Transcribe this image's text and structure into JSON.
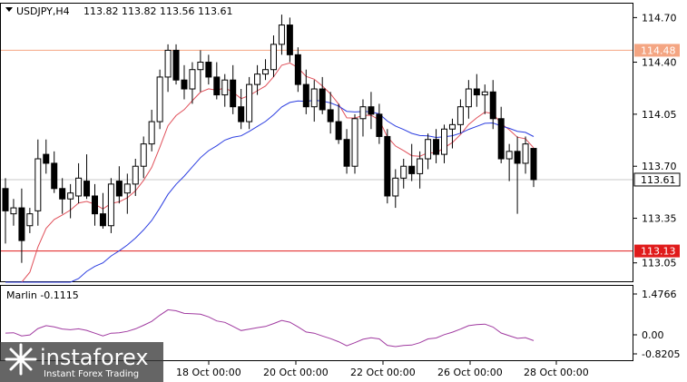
{
  "header": {
    "symbol_timeframe": "USDJPY,H4",
    "ohlc": "113.82 113.82 113.56 113.61"
  },
  "indicator": {
    "label": "Marlin -0.1115",
    "axis_labels": [
      "1.4766",
      "0.00",
      "-0.8205"
    ]
  },
  "price_axis": {
    "labels": [
      "114.70",
      "114.40",
      "114.05",
      "113.70",
      "113.35",
      "113.05"
    ]
  },
  "levels": [
    {
      "label": "114.48",
      "value": 114.48,
      "color": "#f4a582"
    },
    {
      "label": "113.13",
      "value": 113.13,
      "color": "#e01b1b"
    }
  ],
  "current_price": {
    "label": "113.61",
    "value": 113.61
  },
  "time_axis": {
    "labels": [
      "18 Oct 00:00",
      "20 Oct 00:00",
      "22 Oct 00:00",
      "26 Oct 00:00",
      "28 Oct 00:00"
    ]
  },
  "watermark": {
    "brand": "instaforex",
    "tagline": "Instant Forex Trading"
  },
  "colors": {
    "bull_body": "#ffffff",
    "bear_body": "#000000",
    "ma_fast": "#e0505a",
    "ma_slow": "#2b3de0",
    "oscillator": "#a03aa0"
  },
  "chart_data": {
    "type": "candlestick",
    "title": "USDJPY,H4",
    "ylim": [
      112.92,
      114.8
    ],
    "candles": [
      [
        113.55,
        113.62,
        113.18,
        113.4
      ],
      [
        113.38,
        113.48,
        113.3,
        113.42
      ],
      [
        113.42,
        113.55,
        113.05,
        113.2
      ],
      [
        113.3,
        113.42,
        113.25,
        113.38
      ],
      [
        113.4,
        113.88,
        113.3,
        113.75
      ],
      [
        113.78,
        113.88,
        113.65,
        113.72
      ],
      [
        113.72,
        113.8,
        113.52,
        113.55
      ],
      [
        113.55,
        113.62,
        113.38,
        113.48
      ],
      [
        113.48,
        113.58,
        113.35,
        113.52
      ],
      [
        113.5,
        113.72,
        113.45,
        113.62
      ],
      [
        113.6,
        113.78,
        113.48,
        113.5
      ],
      [
        113.5,
        113.58,
        113.3,
        113.38
      ],
      [
        113.38,
        113.52,
        113.28,
        113.3
      ],
      [
        113.3,
        113.62,
        113.25,
        113.58
      ],
      [
        113.6,
        113.7,
        113.45,
        113.5
      ],
      [
        113.52,
        113.65,
        113.38,
        113.58
      ],
      [
        113.58,
        113.75,
        113.5,
        113.7
      ],
      [
        113.7,
        113.9,
        113.62,
        113.85
      ],
      [
        113.85,
        114.08,
        113.8,
        114.0
      ],
      [
        114.0,
        114.35,
        113.95,
        114.3
      ],
      [
        114.3,
        114.52,
        114.2,
        114.48
      ],
      [
        114.48,
        114.52,
        114.25,
        114.28
      ],
      [
        114.28,
        114.38,
        114.15,
        114.22
      ],
      [
        114.22,
        114.4,
        114.12,
        114.35
      ],
      [
        114.35,
        114.48,
        114.2,
        114.4
      ],
      [
        114.4,
        114.45,
        114.25,
        114.3
      ],
      [
        114.3,
        114.4,
        114.15,
        114.18
      ],
      [
        114.18,
        114.32,
        114.1,
        114.28
      ],
      [
        114.28,
        114.38,
        114.05,
        114.1
      ],
      [
        114.1,
        114.22,
        113.95,
        114.0
      ],
      [
        114.0,
        114.3,
        113.95,
        114.25
      ],
      [
        114.25,
        114.38,
        114.18,
        114.32
      ],
      [
        114.32,
        114.42,
        114.28,
        114.35
      ],
      [
        114.35,
        114.58,
        114.3,
        114.52
      ],
      [
        114.52,
        114.72,
        114.45,
        114.65
      ],
      [
        114.65,
        114.7,
        114.4,
        114.45
      ],
      [
        114.45,
        114.5,
        114.2,
        114.25
      ],
      [
        114.25,
        114.35,
        114.05,
        114.1
      ],
      [
        114.1,
        114.28,
        114.0,
        114.22
      ],
      [
        114.22,
        114.3,
        114.05,
        114.08
      ],
      [
        114.08,
        114.2,
        113.92,
        114.0
      ],
      [
        114.0,
        114.12,
        113.85,
        113.88
      ],
      [
        113.88,
        113.95,
        113.65,
        113.7
      ],
      [
        113.7,
        114.05,
        113.65,
        114.02
      ],
      [
        114.02,
        114.15,
        113.9,
        114.1
      ],
      [
        114.1,
        114.2,
        113.95,
        114.05
      ],
      [
        114.05,
        114.12,
        113.85,
        113.9
      ],
      [
        113.9,
        113.95,
        113.45,
        113.5
      ],
      [
        113.5,
        113.68,
        113.42,
        113.62
      ],
      [
        113.62,
        113.75,
        113.55,
        113.7
      ],
      [
        113.7,
        113.85,
        113.6,
        113.65
      ],
      [
        113.65,
        113.8,
        113.55,
        113.75
      ],
      [
        113.75,
        113.92,
        113.68,
        113.88
      ],
      [
        113.88,
        113.95,
        113.72,
        113.78
      ],
      [
        113.78,
        113.98,
        113.72,
        113.95
      ],
      [
        113.95,
        114.02,
        113.82,
        113.98
      ],
      [
        113.98,
        114.15,
        113.92,
        114.1
      ],
      [
        114.1,
        114.28,
        114.02,
        114.22
      ],
      [
        114.22,
        114.32,
        114.1,
        114.18
      ],
      [
        114.18,
        114.25,
        114.05,
        114.2
      ],
      [
        114.2,
        114.28,
        113.95,
        114.02
      ],
      [
        114.02,
        114.1,
        113.72,
        113.75
      ],
      [
        113.75,
        113.85,
        113.6,
        113.8
      ],
      [
        113.8,
        113.9,
        113.38,
        113.72
      ],
      [
        113.72,
        113.9,
        113.65,
        113.85
      ],
      [
        113.82,
        113.82,
        113.56,
        113.61
      ]
    ]
  }
}
